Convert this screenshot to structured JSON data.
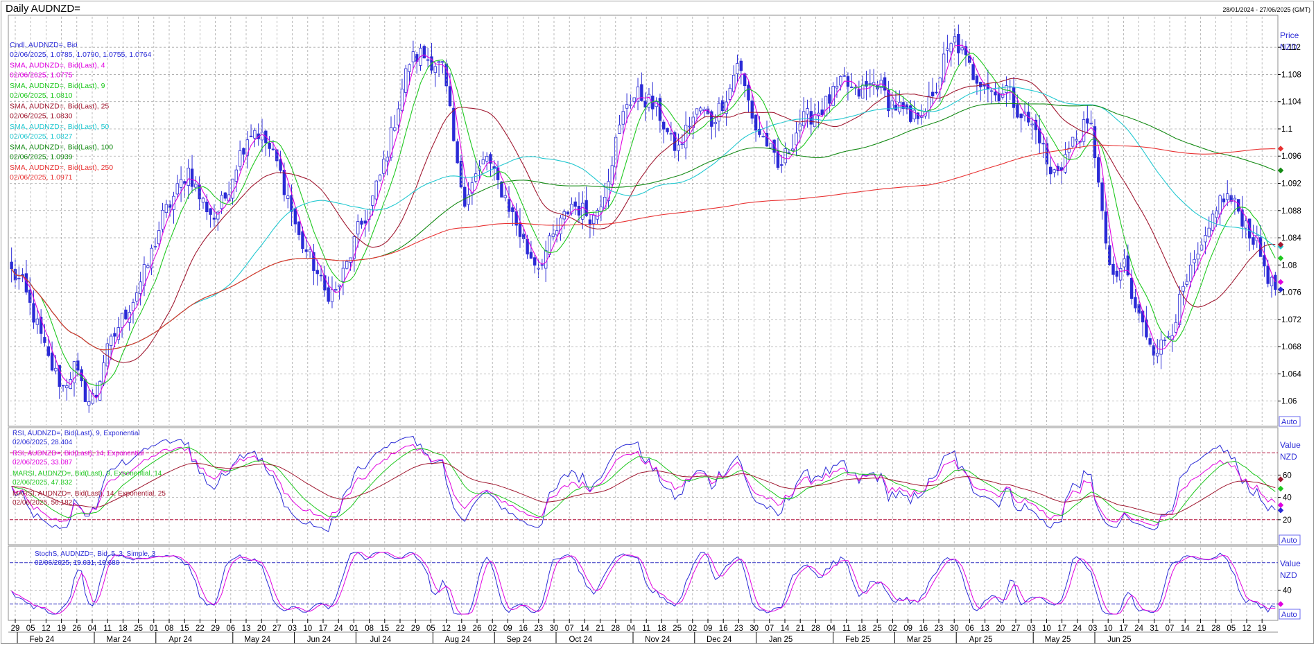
{
  "header": {
    "title": "Daily AUDNZD=",
    "date_range": "28/01/2024 - 27/06/2025 (GMT)"
  },
  "colors": {
    "candle": "#2a2ad6",
    "sma4": "#e000e0",
    "sma9": "#1ec81e",
    "sma25": "#a01830",
    "sma50": "#20c8d0",
    "sma100": "#138a13",
    "sma250": "#e83030",
    "rsi9": "#2a2ad6",
    "rsi14": "#e000e0",
    "marsi9": "#1ec81e",
    "marsi14": "#a01830",
    "stoch_k": "#2a2ad6",
    "stoch_d": "#e000e0",
    "grid": "#a8a8a8",
    "refline": "#b0103a"
  },
  "chart_data": [
    {
      "type": "candlestick",
      "panel": "price",
      "axis_title": "Price",
      "axis_unit": "NZD",
      "auto_label": "Auto",
      "ylim": [
        1.0565,
        1.1165
      ],
      "yticks": [
        "1.06",
        "1.064",
        "1.068",
        "1.072",
        "1.076",
        "1.08",
        "1.084",
        "1.088",
        "1.092",
        "1.096",
        "1.1",
        "1.104",
        "1.108",
        "1.112"
      ],
      "legend": [
        {
          "label": "Cndl, AUDNZD=, Bid",
          "value": "02/06/2025, 1.0785, 1.0790, 1.0755, 1.0764",
          "color": "#2a2ad6"
        },
        {
          "label": "SMA, AUDNZD=, Bid(Last), 4",
          "value": "02/06/2025, 1.0775",
          "color": "#e000e0"
        },
        {
          "label": "SMA, AUDNZD=, Bid(Last), 9",
          "value": "02/06/2025, 1.0810",
          "color": "#1ec81e"
        },
        {
          "label": "SMA, AUDNZD=, Bid(Last), 25",
          "value": "02/06/2025, 1.0830",
          "color": "#a01830"
        },
        {
          "label": "SMA, AUDNZD=, Bid(Last), 50",
          "value": "02/06/2025, 1.0827",
          "color": "#20c8d0"
        },
        {
          "label": "SMA, AUDNZD=, Bid(Last), 100",
          "value": "02/06/2025, 1.0939",
          "color": "#138a13"
        },
        {
          "label": "SMA, AUDNZD=, Bid(Last), 250",
          "value": "02/06/2025, 1.0971",
          "color": "#e83030"
        }
      ],
      "close_anchors": [
        [
          0,
          1.079
        ],
        [
          3,
          1.077
        ],
        [
          7,
          1.071
        ],
        [
          10,
          1.066
        ],
        [
          14,
          1.062
        ],
        [
          17,
          1.065
        ],
        [
          19,
          1.062
        ],
        [
          21,
          1.06
        ],
        [
          23,
          1.061
        ],
        [
          25,
          1.066
        ],
        [
          29,
          1.071
        ],
        [
          33,
          1.075
        ],
        [
          37,
          1.08
        ],
        [
          41,
          1.087
        ],
        [
          45,
          1.091
        ],
        [
          48,
          1.094
        ],
        [
          51,
          1.09
        ],
        [
          55,
          1.087
        ],
        [
          58,
          1.09
        ],
        [
          61,
          1.095
        ],
        [
          64,
          1.099
        ],
        [
          66,
          1.1
        ],
        [
          69,
          1.098
        ],
        [
          72,
          1.095
        ],
        [
          75,
          1.09
        ],
        [
          78,
          1.084
        ],
        [
          82,
          1.08
        ],
        [
          85,
          1.076
        ],
        [
          88,
          1.076
        ],
        [
          91,
          1.08
        ],
        [
          94,
          1.085
        ],
        [
          97,
          1.088
        ],
        [
          100,
          1.093
        ],
        [
          103,
          1.099
        ],
        [
          106,
          1.106
        ],
        [
          108,
          1.11
        ],
        [
          111,
          1.111
        ],
        [
          114,
          1.11
        ],
        [
          117,
          1.109
        ],
        [
          119,
          1.102
        ],
        [
          121,
          1.094
        ],
        [
          123,
          1.09
        ],
        [
          126,
          1.093
        ],
        [
          129,
          1.096
        ],
        [
          131,
          1.093
        ],
        [
          134,
          1.09
        ],
        [
          137,
          1.086
        ],
        [
          140,
          1.082
        ],
        [
          143,
          1.08
        ],
        [
          146,
          1.083
        ],
        [
          149,
          1.086
        ],
        [
          152,
          1.089
        ],
        [
          155,
          1.088
        ],
        [
          158,
          1.087
        ],
        [
          161,
          1.091
        ],
        [
          164,
          1.098
        ],
        [
          167,
          1.104
        ],
        [
          170,
          1.105
        ],
        [
          173,
          1.104
        ],
        [
          176,
          1.102
        ],
        [
          179,
          1.098
        ],
        [
          181,
          1.097
        ],
        [
          184,
          1.101
        ],
        [
          187,
          1.103
        ],
        [
          190,
          1.101
        ],
        [
          193,
          1.104
        ],
        [
          195,
          1.106
        ],
        [
          197,
          1.11
        ],
        [
          199,
          1.106
        ],
        [
          202,
          1.1
        ],
        [
          205,
          1.098
        ],
        [
          208,
          1.094
        ],
        [
          211,
          1.097
        ],
        [
          214,
          1.101
        ],
        [
          217,
          1.102
        ],
        [
          220,
          1.103
        ],
        [
          223,
          1.105
        ],
        [
          226,
          1.107
        ],
        [
          229,
          1.105
        ],
        [
          232,
          1.106
        ],
        [
          235,
          1.107
        ],
        [
          238,
          1.104
        ],
        [
          241,
          1.103
        ],
        [
          244,
          1.101
        ],
        [
          247,
          1.103
        ],
        [
          250,
          1.104
        ],
        [
          253,
          1.11
        ],
        [
          256,
          1.113
        ],
        [
          258,
          1.111
        ],
        [
          261,
          1.108
        ],
        [
          264,
          1.107
        ],
        [
          267,
          1.105
        ],
        [
          270,
          1.106
        ],
        [
          273,
          1.103
        ],
        [
          276,
          1.101
        ],
        [
          279,
          1.099
        ],
        [
          282,
          1.093
        ],
        [
          285,
          1.095
        ],
        [
          288,
          1.098
        ],
        [
          291,
          1.1
        ],
        [
          293,
          1.1
        ],
        [
          295,
          1.093
        ],
        [
          297,
          1.082
        ],
        [
          300,
          1.077
        ],
        [
          302,
          1.081
        ],
        [
          304,
          1.075
        ],
        [
          307,
          1.071
        ],
        [
          310,
          1.068
        ],
        [
          312,
          1.068
        ],
        [
          315,
          1.071
        ],
        [
          318,
          1.076
        ],
        [
          321,
          1.08
        ],
        [
          324,
          1.083
        ],
        [
          327,
          1.089
        ],
        [
          330,
          1.09
        ],
        [
          333,
          1.088
        ],
        [
          336,
          1.085
        ],
        [
          338,
          1.083
        ],
        [
          340,
          1.08
        ],
        [
          342,
          1.077
        ],
        [
          343,
          1.0764
        ]
      ],
      "smas": [
        {
          "period": 4,
          "name": "SMA 4"
        },
        {
          "period": 9,
          "name": "SMA 9"
        },
        {
          "period": 25,
          "name": "SMA 25"
        },
        {
          "period": 50,
          "name": "SMA 50"
        },
        {
          "period": 100,
          "name": "SMA 100"
        },
        {
          "period": 250,
          "name": "SMA 250"
        }
      ],
      "last_values": [
        1.0764,
        1.0775,
        1.081,
        1.083,
        1.0827,
        1.0939,
        1.0971
      ]
    },
    {
      "type": "line",
      "panel": "rsi",
      "axis_title": "Value",
      "axis_unit": "NZD",
      "auto_label": "Auto",
      "ylim": [
        0,
        100
      ],
      "yticks": [
        "20",
        "40",
        "60"
      ],
      "reference_lines": [
        20,
        80
      ],
      "legend": [
        {
          "label": "RSI, AUDNZD=, Bid(Last), 9, Exponential",
          "value": "02/06/2025, 28.404",
          "color": "#2a2ad6"
        },
        {
          "label": "RSI, AUDNZD=, Bid(Last), 14, Exponential",
          "value": "02/06/2025, 33.087",
          "color": "#e000e0"
        },
        {
          "label": "MARSI, AUDNZD=, Bid(Last), 9, Exponential, 14",
          "value": "02/06/2025, 47.832",
          "color": "#1ec81e"
        },
        {
          "label": "MARSI, AUDNZD=, Bid(Last), 14, Exponential, 25",
          "value": "02/06/2025, 56.182",
          "color": "#a01830"
        }
      ],
      "last_values": [
        28.404,
        33.087,
        47.832,
        56.182
      ]
    },
    {
      "type": "line",
      "panel": "stochastic",
      "axis_title": "Value",
      "axis_unit": "NZD",
      "auto_label": "Auto",
      "ylim": [
        0,
        100
      ],
      "yticks": [
        "40"
      ],
      "reference_lines": [
        20,
        80
      ],
      "legend": [
        {
          "label": "StochS, AUDNZD=, Bid, 5, 3, Simple, 3",
          "value": "02/06/2025, 19.031, 19.680",
          "color": "#2a2ad6"
        }
      ],
      "last_values": [
        19.031,
        19.68
      ]
    }
  ],
  "x_axis": {
    "days": [
      "29",
      "05",
      "12",
      "19",
      "26",
      "04",
      "11",
      "18",
      "25",
      "01",
      "08",
      "15",
      "22",
      "29",
      "06",
      "13",
      "20",
      "27",
      "03",
      "10",
      "17",
      "24",
      "01",
      "08",
      "15",
      "22",
      "29",
      "05",
      "12",
      "19",
      "26",
      "02",
      "09",
      "16",
      "23",
      "30",
      "07",
      "14",
      "21",
      "28",
      "04",
      "11",
      "18",
      "25",
      "02",
      "09",
      "16",
      "23",
      "30",
      "07",
      "14",
      "21",
      "28",
      "04",
      "11",
      "18",
      "25",
      "02",
      "09",
      "16",
      "23",
      "30",
      "06",
      "13",
      "20",
      "27",
      "03",
      "10",
      "17",
      "24",
      "03",
      "10",
      "17",
      "24",
      "31",
      "07",
      "14",
      "21",
      "28",
      "05",
      "12",
      "19",
      "26",
      "02",
      "09",
      "16",
      "23"
    ],
    "months": [
      {
        "label": "Feb 24",
        "week": 2
      },
      {
        "label": "Mar 24",
        "week": 7
      },
      {
        "label": "Apr 24",
        "week": 11
      },
      {
        "label": "May 24",
        "week": 16
      },
      {
        "label": "Jun 24",
        "week": 20
      },
      {
        "label": "Jul 24",
        "week": 24
      },
      {
        "label": "Aug 24",
        "week": 29
      },
      {
        "label": "Sep 24",
        "week": 33
      },
      {
        "label": "Oct 24",
        "week": 37
      },
      {
        "label": "Nov 24",
        "week": 42
      },
      {
        "label": "Dec 24",
        "week": 46
      },
      {
        "label": "Jan 25",
        "week": 50
      },
      {
        "label": "Feb 25",
        "week": 55
      },
      {
        "label": "Mar 25",
        "week": 59
      },
      {
        "label": "Apr 25",
        "week": 63
      },
      {
        "label": "May 25",
        "week": 68
      },
      {
        "label": "Jun 25",
        "week": 72
      }
    ]
  }
}
